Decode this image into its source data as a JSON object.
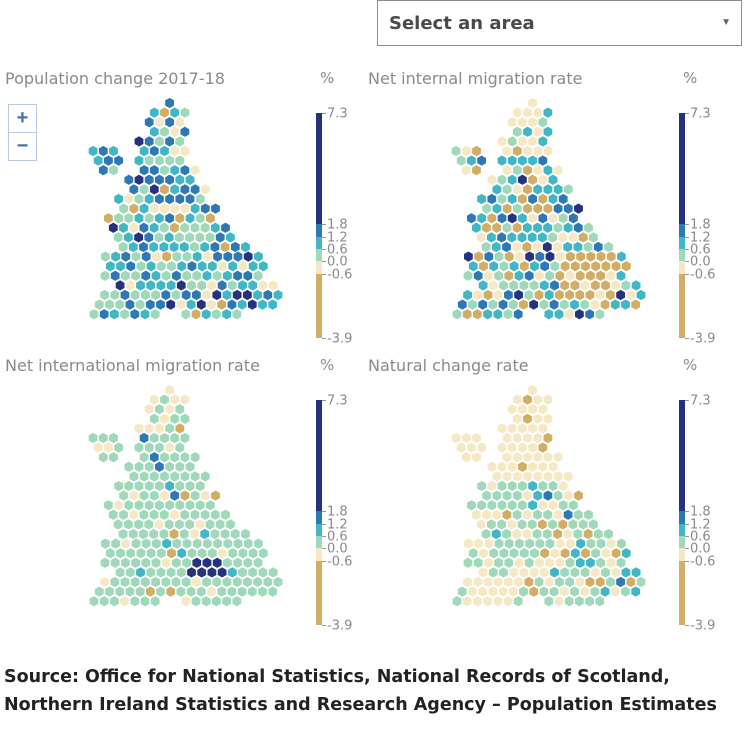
{
  "dropdown": {
    "value": "Select an area"
  },
  "zoom": {
    "in_label": "+",
    "out_label": "−"
  },
  "legend": {
    "ticks": [
      "7.3",
      "1.8",
      "1.2",
      "0.6",
      "0.0",
      "-0.6",
      "-3.9"
    ],
    "colors": [
      "#25337f",
      "#2e79b3",
      "#41b6c4",
      "#9fd9ba",
      "#f5e8c4",
      "#d2ad66"
    ]
  },
  "panels": [
    {
      "title": "Population change 2017-18",
      "unit": "%",
      "profile": "pop"
    },
    {
      "title": "Net internal migration rate",
      "unit": "%",
      "profile": "internal"
    },
    {
      "title": "Net international migration rate",
      "unit": "%",
      "profile": "intl"
    },
    {
      "title": "Natural change rate",
      "unit": "%",
      "profile": "natural"
    }
  ],
  "source": {
    "line1": "Source: Office for National Statistics, National Records of Scotland,",
    "line2": "Northern Ireland Statistics and Research Agency – Population Estimates"
  }
}
